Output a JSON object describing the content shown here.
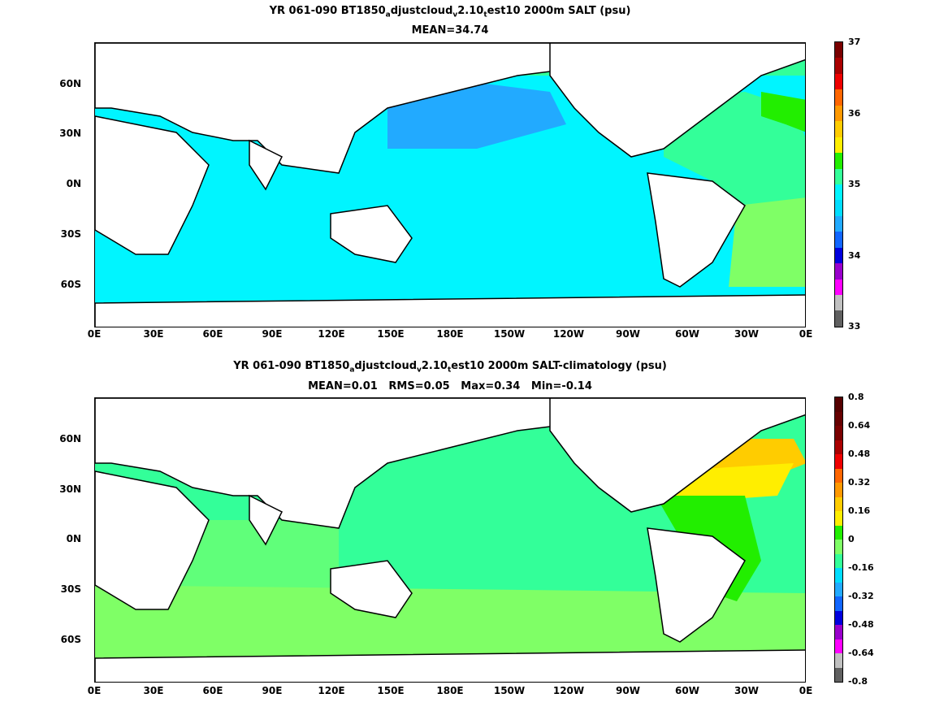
{
  "colors": {
    "land": "#ffffff",
    "coast": "#000000",
    "cyan": "#00f5ff",
    "aqua_green": "#33ff99",
    "light_green": "#7fff66",
    "bright_green": "#22ee00",
    "yellow": "#ffee00",
    "orange": "#ffcc00",
    "sky_blue": "#22aaff",
    "blue": "#1166ff"
  },
  "chart_data": [
    {
      "type": "heatmap",
      "title": "YR 061-090 BT1850",
      "title_sub_a": "a",
      "title_mid": "djustcloud",
      "title_sub_v": "v",
      "title_mid2": "2.10",
      "title_sub_t": "t",
      "title_end": "est10 2000m SALT (psu)",
      "subtitle": "MEAN=34.74",
      "x_ticks": [
        "0E",
        "30E",
        "60E",
        "90E",
        "120E",
        "150E",
        "180E",
        "150W",
        "120W",
        "90W",
        "60W",
        "30W",
        "0E"
      ],
      "y_ticks": [
        "60N",
        "30N",
        "0N",
        "30S",
        "60S"
      ],
      "xlim": [
        0,
        360
      ],
      "ylim": [
        -80,
        90
      ],
      "colorbar": {
        "labels": [
          "37",
          "36",
          "35",
          "34",
          "33"
        ],
        "range": [
          33,
          37
        ],
        "colors": [
          "#606060",
          "#c0c0c0",
          "#ff00ff",
          "#9900cc",
          "#0000dd",
          "#1166ff",
          "#22aaff",
          "#00ddff",
          "#00f5ff",
          "#33ff99",
          "#22ee00",
          "#ffee00",
          "#ffcc00",
          "#ff9900",
          "#ff6600",
          "#ee0000",
          "#aa0000",
          "#7a0000"
        ]
      }
    },
    {
      "type": "heatmap",
      "title": "YR 061-090 BT1850",
      "title_sub_a": "a",
      "title_mid": "djustcloud",
      "title_sub_v": "v",
      "title_mid2": "2.10",
      "title_sub_t": "t",
      "title_end": "est10 2000m SALT-climatology (psu)",
      "subtitle": "MEAN=0.01   RMS=0.05   Max=0.34   Min=-0.14",
      "x_ticks": [
        "0E",
        "30E",
        "60E",
        "90E",
        "120E",
        "150E",
        "180E",
        "150W",
        "120W",
        "90W",
        "60W",
        "30W",
        "0E"
      ],
      "y_ticks": [
        "60N",
        "30N",
        "0N",
        "30S",
        "60S"
      ],
      "xlim": [
        0,
        360
      ],
      "ylim": [
        -80,
        90
      ],
      "colorbar": {
        "labels": [
          "0.8",
          "0.64",
          "0.48",
          "0.32",
          "0.16",
          "0",
          "-0.16",
          "-0.32",
          "-0.48",
          "-0.64",
          "-0.8"
        ],
        "range": [
          -0.8,
          0.8
        ],
        "colors": [
          "#606060",
          "#c0c0c0",
          "#ff00ff",
          "#9900cc",
          "#0000dd",
          "#1166ff",
          "#22aaff",
          "#00ddff",
          "#33ff99",
          "#7fff66",
          "#22ee00",
          "#ffee00",
          "#ffcc00",
          "#ff9900",
          "#ff6600",
          "#ee0000",
          "#aa0000",
          "#7a0000",
          "#660000",
          "#550000"
        ]
      }
    }
  ]
}
